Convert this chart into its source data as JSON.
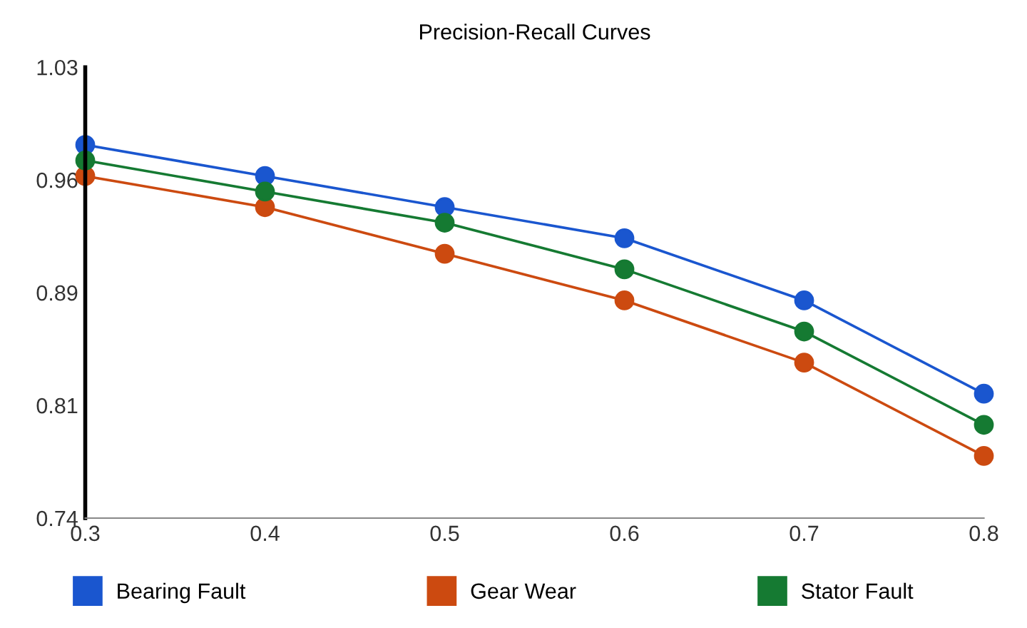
{
  "chart_data": {
    "type": "line",
    "title": "Precision-Recall Curves",
    "x": [
      0.3,
      0.4,
      0.5,
      0.6,
      0.7,
      0.8
    ],
    "series": [
      {
        "name": "Bearing Fault",
        "color": "#1a56cf",
        "values": [
          0.98,
          0.96,
          0.94,
          0.92,
          0.88,
          0.82
        ]
      },
      {
        "name": "Gear Wear",
        "color": "#cc4a10",
        "values": [
          0.96,
          0.94,
          0.91,
          0.88,
          0.84,
          0.78
        ]
      },
      {
        "name": "Stator Fault",
        "color": "#157a32",
        "values": [
          0.97,
          0.95,
          0.93,
          0.9,
          0.86,
          0.8
        ]
      }
    ],
    "xlim": [
      0.3,
      0.8
    ],
    "xticks": [
      0.3,
      0.4,
      0.5,
      0.6,
      0.7,
      0.8
    ],
    "ylim": [
      0.74,
      1.03
    ],
    "yticks": [
      0.74,
      {
        "value": 0.8125,
        "label": "0.81"
      },
      {
        "value": 0.885,
        "label": "0.89"
      },
      {
        "value": 0.9575,
        "label": "0.96"
      },
      1.03
    ],
    "grid": false,
    "legend": "bottom",
    "marker": "circle",
    "line_style": "solid"
  }
}
